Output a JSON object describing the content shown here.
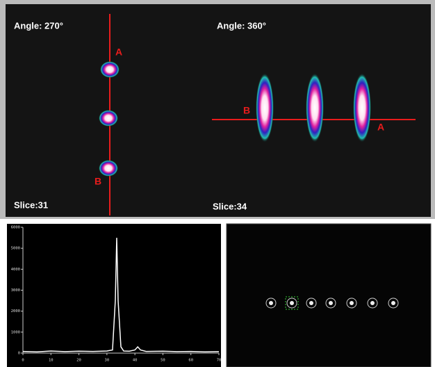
{
  "images": {
    "left": {
      "angle": "Angle: 270°",
      "slice": "Slice:31",
      "marker_top": "A",
      "marker_bottom": "B"
    },
    "right": {
      "angle": "Angle: 360°",
      "slice": "Slice:34",
      "marker_left": "B",
      "marker_right": "A"
    }
  },
  "chart_data": {
    "type": "line",
    "color": "#ffffff",
    "x": [
      0,
      5,
      10,
      15,
      20,
      25,
      30,
      32,
      33,
      33.5,
      34,
      35,
      36,
      38,
      40,
      41,
      42,
      44,
      50,
      55,
      60,
      65,
      70
    ],
    "values": [
      80,
      60,
      100,
      70,
      90,
      80,
      100,
      150,
      2500,
      5500,
      2500,
      300,
      100,
      90,
      150,
      300,
      150,
      80,
      90,
      70,
      80,
      60,
      70
    ],
    "xlim": [
      0,
      70
    ],
    "xticks": [
      0,
      10,
      20,
      30,
      40,
      50,
      60,
      70
    ],
    "ylim": [
      0,
      6000
    ],
    "yticks": [
      0,
      1000,
      2000,
      3000,
      4000,
      5000,
      6000
    ]
  }
}
